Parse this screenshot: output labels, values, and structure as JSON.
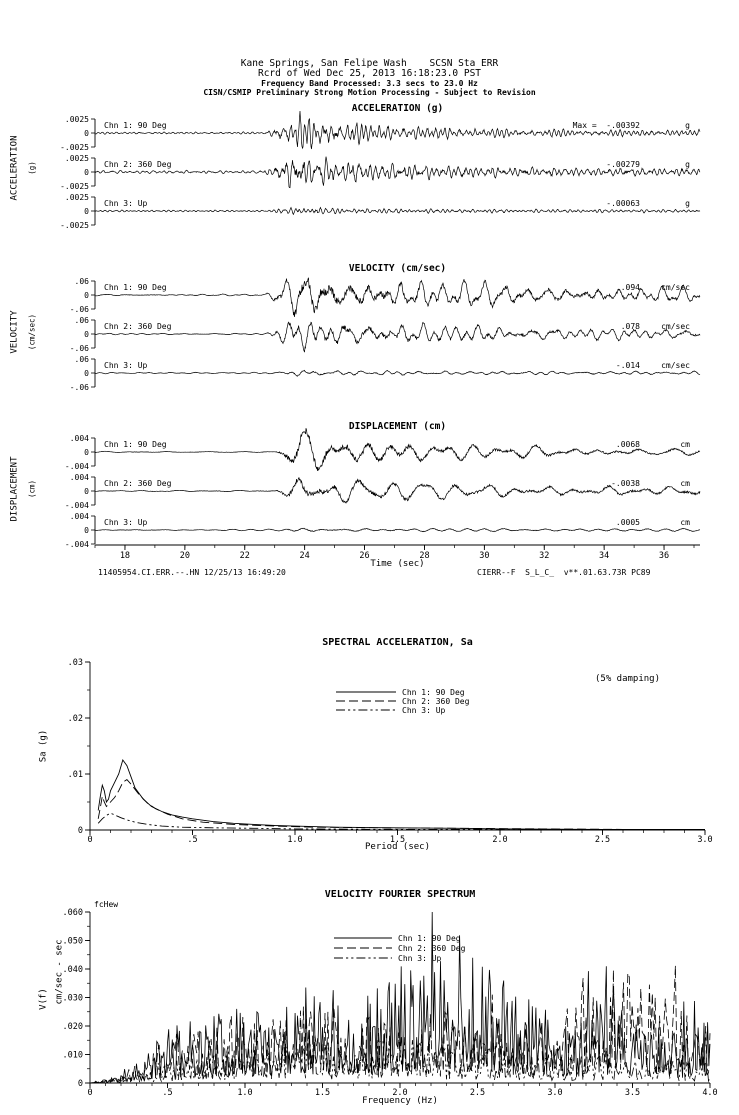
{
  "header": {
    "line1": "Kane Springs, San Felipe Wash    SCSN Sta ERR",
    "line2": "Rcrd of Wed Dec 25, 2013 16:18:23.0 PST",
    "line3": "Frequency Band Processed: 3.3 secs to 23.0 Hz",
    "line4": "CISN/CSMIP Preliminary Strong Motion Processing - Subject to Revision"
  },
  "footer": {
    "left": "11405954.CI.ERR.--.HN 12/25/13 16:49:20",
    "right": "CIERR--F  S_L_C_  v**.01.63.73R PC89"
  },
  "chart_data": [
    {
      "id": "strong-motion-timeseries",
      "type": "line",
      "xlabel": "Time (sec)",
      "x_range": [
        17.0,
        37.2
      ],
      "x_ticks": [
        18,
        20,
        22,
        24,
        26,
        28,
        30,
        32,
        34,
        36
      ],
      "panels": [
        {
          "title": "ACCELERATION (g)",
          "side_label": "ACCELERATION",
          "side_units": "(g)",
          "axis_tick_labels": [
            ".0025",
            "0",
            "-.0025"
          ],
          "channels": [
            {
              "label": "Chn 1: 90 Deg",
              "peak_label": "Max =  -.00392",
              "unit_label": "g",
              "peak_value": -0.00392,
              "synth": {
                "seed": 101,
                "freq": 3.8,
                "amp": 1.57,
                "quiet": 0.09,
                "coda": 0.3,
                "t0": 22.6,
                "tp": 23.9,
                "tau": 2.8
              }
            },
            {
              "label": "Chn 2: 360 Deg",
              "peak_label": "-.00279",
              "unit_label": "g",
              "peak_value": -0.00279,
              "synth": {
                "seed": 202,
                "freq": 3.8,
                "amp": 1.12,
                "quiet": 0.09,
                "coda": 0.28,
                "t0": 22.6,
                "tp": 23.8,
                "tau": 3.0
              }
            },
            {
              "label": "Chn 3: Up",
              "peak_label": "-.00063",
              "unit_label": "g",
              "peak_value": -0.00063,
              "synth": {
                "seed": 303,
                "freq": 4.5,
                "amp": 0.25,
                "quiet": 0.06,
                "coda": 0.1,
                "t0": 22.7,
                "tp": 23.8,
                "tau": 2.5
              }
            }
          ]
        },
        {
          "title": "VELOCITY (cm/sec)",
          "side_label": "VELOCITY",
          "side_units": "(cm/sec)",
          "axis_tick_labels": [
            ".06",
            "0",
            "-.06"
          ],
          "channels": [
            {
              "label": "Chn 1: 90 Deg",
              "peak_label": ".094",
              "unit_label": "cm/sec",
              "peak_value": 0.094,
              "synth": {
                "seed": 404,
                "freq": 1.6,
                "amp": 1.57,
                "quiet": 0.06,
                "coda": 0.38,
                "t0": 22.7,
                "tp": 23.9,
                "tau": 5.0
              }
            },
            {
              "label": "Chn 2: 360 Deg",
              "peak_label": ".078",
              "unit_label": "cm/sec",
              "peak_value": 0.078,
              "synth": {
                "seed": 505,
                "freq": 1.6,
                "amp": 1.3,
                "quiet": 0.06,
                "coda": 0.35,
                "t0": 22.7,
                "tp": 23.9,
                "tau": 5.0
              }
            },
            {
              "label": "Chn 3: Up",
              "peak_label": "-.014",
              "unit_label": "cm/sec",
              "peak_value": -0.014,
              "synth": {
                "seed": 606,
                "freq": 2.0,
                "amp": 0.23,
                "quiet": 0.05,
                "coda": 0.12,
                "t0": 22.7,
                "tp": 23.8,
                "tau": 4.0
              }
            }
          ]
        },
        {
          "title": "DISPLACEMENT (cm)",
          "side_label": "DISPLACEMENT",
          "side_units": "(cm)",
          "axis_tick_labels": [
            ".004",
            "0",
            "-.004"
          ],
          "channels": [
            {
              "label": "Chn 1: 90 Deg",
              "peak_label": ".0068",
              "unit_label": "cm",
              "peak_value": 0.0068,
              "synth": {
                "seed": 707,
                "freq": 0.85,
                "amp": 1.7,
                "quiet": 0.05,
                "coda": 0.3,
                "t0": 23.0,
                "tp": 23.8,
                "tau": 3.5
              }
            },
            {
              "label": "Chn 2: 360 Deg",
              "peak_label": "-.0038",
              "unit_label": "cm",
              "peak_value": -0.0038,
              "synth": {
                "seed": 808,
                "freq": 0.9,
                "amp": 0.95,
                "quiet": 0.05,
                "coda": 0.3,
                "t0": 23.0,
                "tp": 23.8,
                "tau": 3.5
              }
            },
            {
              "label": "Chn 3: Up",
              "peak_label": ".0005",
              "unit_label": "cm",
              "peak_value": 0.0005,
              "synth": {
                "seed": 909,
                "freq": 1.0,
                "amp": 0.13,
                "quiet": 0.04,
                "coda": 0.08,
                "t0": 23.0,
                "tp": 23.8,
                "tau": 3.0
              }
            }
          ]
        }
      ]
    },
    {
      "id": "spectral-acceleration",
      "type": "line",
      "title": "SPECTRAL ACCELERATION, Sa",
      "xlabel": "Period (sec)",
      "ylabel": "Sa (g)",
      "annotation": "(5% damping)",
      "xlim": [
        0,
        3.0
      ],
      "ylim": [
        0,
        0.03
      ],
      "x_ticks": [
        {
          "v": 0,
          "label": "0"
        },
        {
          "v": 0.5,
          "label": ".5"
        },
        {
          "v": 1.0,
          "label": "1.0"
        },
        {
          "v": 1.5,
          "label": "1.5"
        },
        {
          "v": 2.0,
          "label": "2.0"
        },
        {
          "v": 2.5,
          "label": "2.5"
        },
        {
          "v": 3.0,
          "label": "3.0"
        }
      ],
      "y_ticks": [
        {
          "v": 0,
          "label": "0"
        },
        {
          "v": 0.01,
          "label": ".01"
        },
        {
          "v": 0.02,
          "label": ".02"
        },
        {
          "v": 0.03,
          "label": ".03"
        }
      ],
      "series": [
        {
          "name": "Chn 1: 90 Deg",
          "dash": "solid",
          "points": [
            [
              0.04,
              0.0035
            ],
            [
              0.05,
              0.006
            ],
            [
              0.06,
              0.008
            ],
            [
              0.07,
              0.007
            ],
            [
              0.08,
              0.005
            ],
            [
              0.09,
              0.0055
            ],
            [
              0.1,
              0.007
            ],
            [
              0.12,
              0.0085
            ],
            [
              0.14,
              0.01
            ],
            [
              0.16,
              0.0125
            ],
            [
              0.18,
              0.0115
            ],
            [
              0.2,
              0.0095
            ],
            [
              0.22,
              0.0075
            ],
            [
              0.26,
              0.0055
            ],
            [
              0.3,
              0.0042
            ],
            [
              0.35,
              0.0033
            ],
            [
              0.4,
              0.0027
            ],
            [
              0.45,
              0.0023
            ],
            [
              0.5,
              0.002
            ],
            [
              0.6,
              0.0015
            ],
            [
              0.7,
              0.0012
            ],
            [
              0.8,
              0.001
            ],
            [
              0.9,
              0.0008
            ],
            [
              1.0,
              0.0007
            ],
            [
              1.2,
              0.0005
            ],
            [
              1.5,
              0.0004
            ],
            [
              1.8,
              0.0003
            ],
            [
              2.0,
              0.0002
            ],
            [
              2.5,
              0.0001
            ],
            [
              3.0,
              0.0001
            ]
          ]
        },
        {
          "name": "Chn 2: 360 Deg",
          "dash": "long-dash",
          "points": [
            [
              0.04,
              0.002
            ],
            [
              0.05,
              0.004
            ],
            [
              0.06,
              0.006
            ],
            [
              0.07,
              0.005
            ],
            [
              0.08,
              0.0042
            ],
            [
              0.1,
              0.005
            ],
            [
              0.12,
              0.0058
            ],
            [
              0.14,
              0.007
            ],
            [
              0.16,
              0.0085
            ],
            [
              0.18,
              0.009
            ],
            [
              0.2,
              0.0082
            ],
            [
              0.24,
              0.0063
            ],
            [
              0.28,
              0.0048
            ],
            [
              0.32,
              0.0038
            ],
            [
              0.38,
              0.0028
            ],
            [
              0.45,
              0.002
            ],
            [
              0.55,
              0.0014
            ],
            [
              0.7,
              0.001
            ],
            [
              0.9,
              0.0007
            ],
            [
              1.1,
              0.0005
            ],
            [
              1.4,
              0.0004
            ],
            [
              1.8,
              0.0003
            ],
            [
              2.2,
              0.0002
            ],
            [
              2.6,
              0.0001
            ],
            [
              3.0,
              0.0001
            ]
          ]
        },
        {
          "name": "Chn 3: Up",
          "dash": "dash-dot-dot",
          "points": [
            [
              0.04,
              0.0012
            ],
            [
              0.06,
              0.002
            ],
            [
              0.08,
              0.0026
            ],
            [
              0.1,
              0.003
            ],
            [
              0.12,
              0.0027
            ],
            [
              0.15,
              0.0022
            ],
            [
              0.18,
              0.0018
            ],
            [
              0.22,
              0.0014
            ],
            [
              0.28,
              0.001
            ],
            [
              0.35,
              0.0007
            ],
            [
              0.45,
              0.0005
            ],
            [
              0.6,
              0.0004
            ],
            [
              0.8,
              0.0003
            ],
            [
              1.0,
              0.0002
            ],
            [
              1.5,
              0.0001
            ],
            [
              2.0,
              0.0001
            ],
            [
              3.0,
              5e-05
            ]
          ]
        }
      ]
    },
    {
      "id": "velocity-fourier-spectrum",
      "type": "line",
      "title": "VELOCITY FOURIER SPECTRUM",
      "corner_note": "fcHew",
      "xlabel": "Frequency (Hz)",
      "ylabel_lines": [
        "cm/sec - sec",
        "V(f)"
      ],
      "xlim": [
        0,
        4.0
      ],
      "ylim": [
        0,
        0.06
      ],
      "x_ticks": [
        {
          "v": 0,
          "label": "0"
        },
        {
          "v": 0.5,
          "label": ".5"
        },
        {
          "v": 1.0,
          "label": "1.0"
        },
        {
          "v": 1.5,
          "label": "1.5"
        },
        {
          "v": 2.0,
          "label": "2.0"
        },
        {
          "v": 2.5,
          "label": "2.5"
        },
        {
          "v": 3.0,
          "label": "3.0"
        },
        {
          "v": 3.5,
          "label": "3.5"
        },
        {
          "v": 4.0,
          "label": "4.0"
        }
      ],
      "y_ticks": [
        {
          "v": 0,
          "label": "0"
        },
        {
          "v": 0.01,
          "label": ".010"
        },
        {
          "v": 0.02,
          "label": ".020"
        },
        {
          "v": 0.03,
          "label": ".030"
        },
        {
          "v": 0.04,
          "label": ".040"
        },
        {
          "v": 0.05,
          "label": ".050"
        },
        {
          "v": 0.06,
          "label": ".060"
        }
      ],
      "series": [
        {
          "name": "Chn 1: 90 Deg",
          "dash": "solid",
          "seed": 11,
          "n": 520,
          "envelope": [
            [
              0,
              0
            ],
            [
              0.15,
              0.001
            ],
            [
              0.3,
              0.005
            ],
            [
              0.5,
              0.011
            ],
            [
              0.7,
              0.014
            ],
            [
              0.9,
              0.015
            ],
            [
              1.1,
              0.017
            ],
            [
              1.3,
              0.019
            ],
            [
              1.5,
              0.021
            ],
            [
              1.7,
              0.019
            ],
            [
              1.9,
              0.021
            ],
            [
              2.1,
              0.03
            ],
            [
              2.2,
              0.042
            ],
            [
              2.3,
              0.026
            ],
            [
              2.5,
              0.028
            ],
            [
              2.7,
              0.02
            ],
            [
              2.9,
              0.016
            ],
            [
              3.1,
              0.013
            ],
            [
              3.3,
              0.018
            ],
            [
              3.5,
              0.014
            ],
            [
              3.7,
              0.011
            ],
            [
              3.9,
              0.013
            ],
            [
              4.0,
              0.016
            ]
          ]
        },
        {
          "name": "Chn 2: 360 Deg",
          "dash": "long-dash",
          "seed": 22,
          "n": 430,
          "envelope": [
            [
              0,
              0
            ],
            [
              0.2,
              0.002
            ],
            [
              0.4,
              0.007
            ],
            [
              0.6,
              0.011
            ],
            [
              0.9,
              0.014
            ],
            [
              1.2,
              0.016
            ],
            [
              1.5,
              0.017
            ],
            [
              1.8,
              0.014
            ],
            [
              2.1,
              0.016
            ],
            [
              2.4,
              0.014
            ],
            [
              2.7,
              0.012
            ],
            [
              3.0,
              0.011
            ],
            [
              3.2,
              0.024
            ],
            [
              3.4,
              0.027
            ],
            [
              3.6,
              0.022
            ],
            [
              3.8,
              0.017
            ],
            [
              4.0,
              0.013
            ]
          ]
        },
        {
          "name": "Chn 3: Up",
          "dash": "dash-dot-dot",
          "seed": 33,
          "n": 400,
          "envelope": [
            [
              0,
              0
            ],
            [
              0.3,
              0.002
            ],
            [
              0.6,
              0.005
            ],
            [
              0.9,
              0.007
            ],
            [
              1.2,
              0.008
            ],
            [
              1.5,
              0.009
            ],
            [
              1.8,
              0.009
            ],
            [
              2.1,
              0.0085
            ],
            [
              2.4,
              0.008
            ],
            [
              2.7,
              0.007
            ],
            [
              3.0,
              0.006
            ],
            [
              3.3,
              0.0055
            ],
            [
              3.6,
              0.005
            ],
            [
              4.0,
              0.0045
            ]
          ]
        }
      ]
    }
  ]
}
